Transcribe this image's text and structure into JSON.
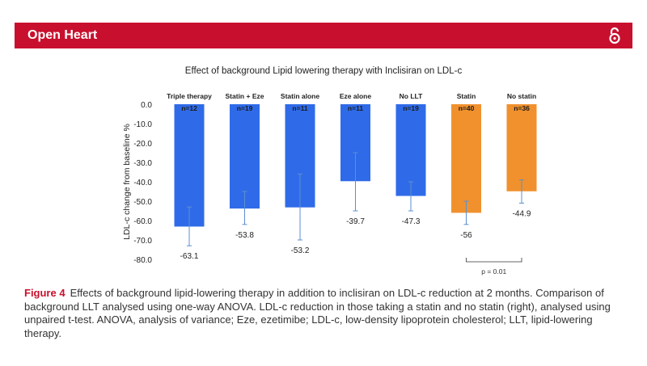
{
  "header": {
    "journal": "Open Heart",
    "icon": "open-access-icon"
  },
  "colors": {
    "banner": "#c8102e",
    "blue": "#2f6be8",
    "orange": "#f0912e",
    "error": "#5b8fd0"
  },
  "chart_data": {
    "type": "bar",
    "title": "Effect of background Lipid lowering therapy with Inclisiran on LDL-c",
    "ylabel": "LDL-c change from baseline %",
    "ylim": [
      -80,
      0
    ],
    "yticks": [
      "0.0",
      "-10.0",
      "-20.0",
      "-30.0",
      "-40.0",
      "-50.0",
      "-60.0",
      "-70.0",
      "-80.0"
    ],
    "ytick_values": [
      0,
      -10,
      -20,
      -30,
      -40,
      -50,
      -60,
      -70,
      -80
    ],
    "categories": [
      "Triple therapy",
      "Statin + Eze",
      "Statin alone",
      "Eze alone",
      "No LLT",
      "Statin",
      "No statin"
    ],
    "n_labels": [
      "n=12",
      "n=19",
      "n=11",
      "n=11",
      "n=19",
      "n=40",
      "n=36"
    ],
    "values": [
      -63.1,
      -53.8,
      -53.2,
      -39.7,
      -47.3,
      -56,
      -44.9
    ],
    "value_labels": [
      "-63.1",
      "-53.8",
      "-53.2",
      "-39.7",
      "-47.3",
      "-56",
      "-44.9"
    ],
    "error_low": [
      -73,
      -62,
      -70,
      -55,
      -55,
      -62,
      -51
    ],
    "error_high": [
      -53,
      -45,
      -36,
      -25,
      -40,
      -50,
      -39
    ],
    "bar_colors": [
      "blue",
      "blue",
      "blue",
      "blue",
      "blue",
      "orange",
      "orange"
    ],
    "annotation": "p = 0.01"
  },
  "caption": {
    "label": "Figure 4",
    "text": "Effects of background lipid-lowering therapy in addition to inclisiran on LDL-c reduction at 2 months. Comparison of background LLT analysed using one-way ANOVA. LDL-c reduction in those taking a statin and no statin (right), analysed using unpaired t-test. ANOVA, analysis of variance; Eze, ezetimibe; LDL-c, low-density lipoprotein cholesterol; LLT, lipid-lowering therapy."
  }
}
